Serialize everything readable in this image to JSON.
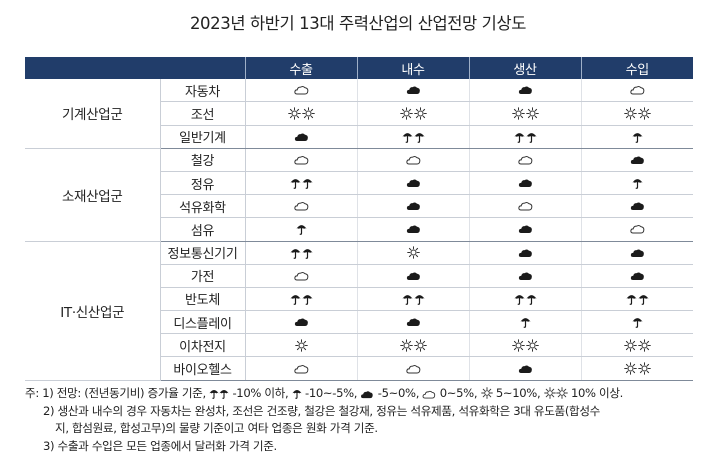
{
  "title": "2023년 하반기 13대 주력산업의 산업전망 기상도",
  "columns": [
    "수출",
    "내수",
    "생산",
    "수입"
  ],
  "groups": [
    {
      "name": "기계산업군",
      "rows": [
        {
          "industry": "자동차",
          "values": [
            "cloud",
            "rain-cloud",
            "rain-cloud",
            "cloud"
          ]
        },
        {
          "industry": "조선",
          "values": [
            "double-sun",
            "double-sun",
            "double-sun",
            "double-sun"
          ]
        },
        {
          "industry": "일반기계",
          "values": [
            "rain-cloud",
            "double-umbrella",
            "double-umbrella",
            "umbrella"
          ]
        }
      ]
    },
    {
      "name": "소재산업군",
      "rows": [
        {
          "industry": "철강",
          "values": [
            "cloud",
            "cloud",
            "cloud",
            "rain-cloud"
          ]
        },
        {
          "industry": "정유",
          "values": [
            "double-umbrella",
            "rain-cloud",
            "rain-cloud",
            "umbrella"
          ]
        },
        {
          "industry": "석유화학",
          "values": [
            "cloud",
            "rain-cloud",
            "cloud",
            "rain-cloud"
          ]
        },
        {
          "industry": "섬유",
          "values": [
            "umbrella",
            "rain-cloud",
            "rain-cloud",
            "cloud"
          ]
        }
      ]
    },
    {
      "name": "IT·신산업군",
      "rows": [
        {
          "industry": "정보통신기기",
          "values": [
            "double-umbrella",
            "sun",
            "rain-cloud",
            "rain-cloud"
          ]
        },
        {
          "industry": "가전",
          "values": [
            "cloud",
            "rain-cloud",
            "rain-cloud",
            "rain-cloud"
          ]
        },
        {
          "industry": "반도체",
          "values": [
            "double-umbrella",
            "double-umbrella",
            "double-umbrella",
            "double-umbrella"
          ]
        },
        {
          "industry": "디스플레이",
          "values": [
            "rain-cloud",
            "rain-cloud",
            "umbrella",
            "umbrella"
          ]
        },
        {
          "industry": "이차전지",
          "values": [
            "sun",
            "double-sun",
            "double-sun",
            "double-sun"
          ]
        },
        {
          "industry": "바이오헬스",
          "values": [
            "cloud",
            "cloud",
            "rain-cloud",
            "double-sun"
          ]
        }
      ]
    }
  ],
  "notes": {
    "prefix": "주: 1) 전망: (전년동기비) 증가율 기준,",
    "legend": [
      {
        "icon": "double-umbrella",
        "text": " -10% 이하, "
      },
      {
        "icon": "umbrella",
        "text": " -10~-5%, "
      },
      {
        "icon": "rain-cloud",
        "text": " -5~0%, "
      },
      {
        "icon": "cloud",
        "text": " 0~5%, "
      },
      {
        "icon": "sun",
        "text": " 5~10%, "
      },
      {
        "icon": "double-sun",
        "text": " 10% 이상."
      }
    ],
    "note2_line1": "2) 생산과 내수의 경우 자동차는 완성차, 조선은 건조량, 철강은 철강재, 정유는 석유제품, 석유화학은 3대 유도품(합성수",
    "note2_line2": "지, 합섬원료, 합성고무)의 물량 기준이고 여타 업종은 원화 가격 기준.",
    "note3": "3) 수출과 수입은 모든 업종에서 달러화 가격 기준."
  },
  "colors": {
    "header_bg": "#213d6a",
    "header_text": "#ffffff",
    "rule": "#c9ced6"
  }
}
